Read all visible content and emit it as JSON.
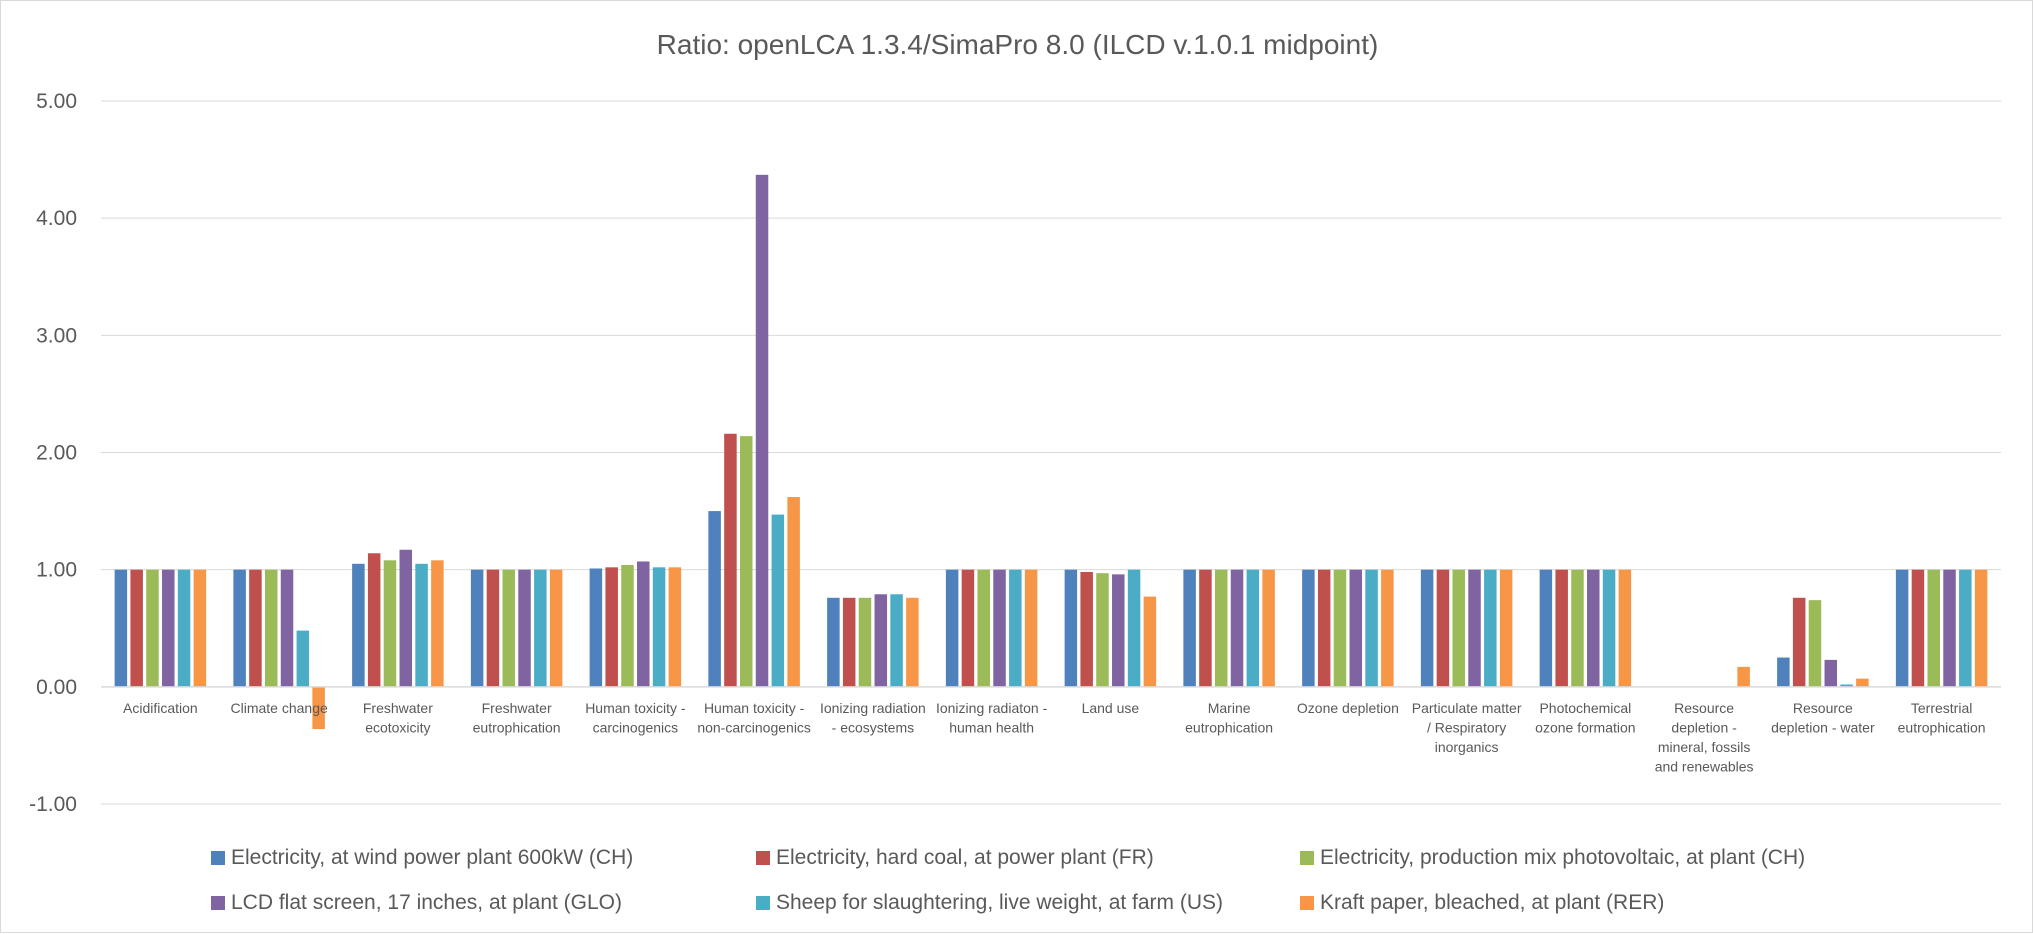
{
  "chart_data": {
    "type": "bar",
    "title": "Ratio: openLCA 1.3.4/SimaPro 8.0 (ILCD v.1.0.1 midpoint)",
    "xlabel": "",
    "ylabel": "",
    "ylim": [
      -1,
      5
    ],
    "yticks": [
      "-1.00",
      "0.00",
      "1.00",
      "2.00",
      "3.00",
      "4.00",
      "5.00"
    ],
    "grid": true,
    "legend_position": "bottom",
    "categories": [
      [
        "Acidification"
      ],
      [
        "Climate change"
      ],
      [
        "Freshwater",
        "ecotoxicity"
      ],
      [
        "Freshwater",
        "eutrophication"
      ],
      [
        "Human toxicity -",
        "carcinogenics"
      ],
      [
        "Human toxicity -",
        "non-carcinogenics"
      ],
      [
        "Ionizing radiation",
        "- ecosystems"
      ],
      [
        "Ionizing radiaton -",
        "human health"
      ],
      [
        "Land use"
      ],
      [
        "Marine",
        "eutrophication"
      ],
      [
        "Ozone depletion"
      ],
      [
        "Particulate matter",
        "/ Respiratory",
        "inorganics"
      ],
      [
        "Photochemical",
        "ozone formation"
      ],
      [
        "Resource",
        "depletion -",
        "mineral, fossils",
        "and renewables"
      ],
      [
        "Resource",
        "depletion - water"
      ],
      [
        "Terrestrial",
        "eutrophication"
      ]
    ],
    "series": [
      {
        "name": "Electricity, at wind power plant 600kW (CH)",
        "color": "#4f81bd",
        "values": [
          1.0,
          1.0,
          1.05,
          1.0,
          1.01,
          1.5,
          0.76,
          1.0,
          1.0,
          1.0,
          1.0,
          1.0,
          1.0,
          0.0,
          0.25,
          1.0
        ]
      },
      {
        "name": "Electricity, hard coal, at power plant (FR)",
        "color": "#c0504d",
        "values": [
          1.0,
          1.0,
          1.14,
          1.0,
          1.02,
          2.16,
          0.76,
          1.0,
          0.98,
          1.0,
          1.0,
          1.0,
          1.0,
          0.0,
          0.76,
          1.0
        ]
      },
      {
        "name": "Electricity, production mix photovoltaic, at plant (CH)",
        "color": "#9bbb59",
        "values": [
          1.0,
          1.0,
          1.08,
          1.0,
          1.04,
          2.14,
          0.76,
          1.0,
          0.97,
          1.0,
          1.0,
          1.0,
          1.0,
          0.0,
          0.74,
          1.0
        ]
      },
      {
        "name": "LCD flat screen, 17 inches, at plant (GLO)",
        "color": "#8064a2",
        "values": [
          1.0,
          1.0,
          1.17,
          1.0,
          1.07,
          4.37,
          0.79,
          1.0,
          0.96,
          1.0,
          1.0,
          1.0,
          1.0,
          0.0,
          0.23,
          1.0
        ]
      },
      {
        "name": "Sheep for slaughtering, live weight, at farm (US)",
        "color": "#4bacc6",
        "values": [
          1.0,
          0.48,
          1.05,
          1.0,
          1.02,
          1.47,
          0.79,
          1.0,
          1.0,
          1.0,
          1.0,
          1.0,
          1.0,
          0.0,
          0.02,
          1.0
        ]
      },
      {
        "name": "Kraft paper, bleached, at plant (RER)",
        "color": "#f79646",
        "values": [
          1.0,
          -0.36,
          1.08,
          1.0,
          1.02,
          1.62,
          0.76,
          1.0,
          0.77,
          1.0,
          1.0,
          1.0,
          1.0,
          0.17,
          0.07,
          1.0
        ]
      }
    ]
  }
}
